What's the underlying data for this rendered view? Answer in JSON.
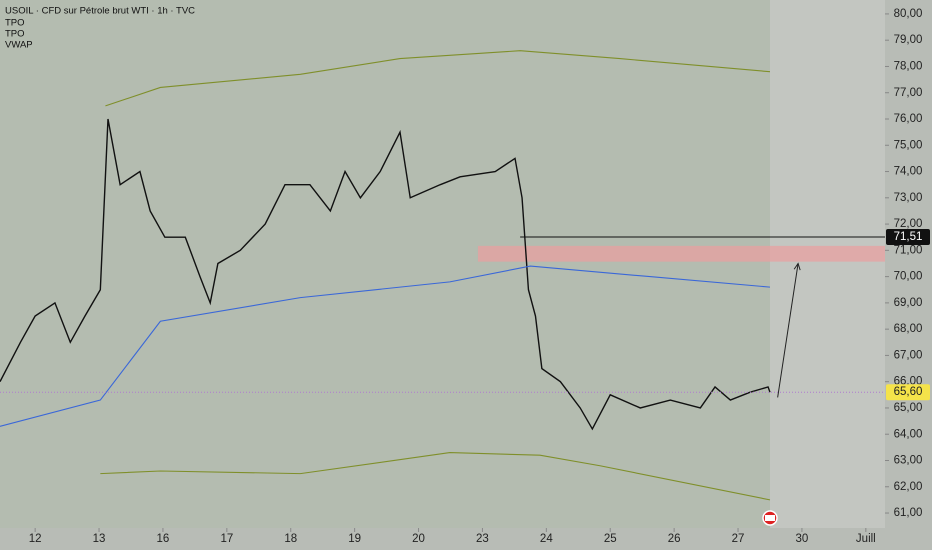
{
  "chart_data": {
    "type": "line",
    "title": "USOIL · CFD sur Pétrole brut WTI · 1h · TVC",
    "indicators": [
      "TPO",
      "TPO"
    ],
    "xlim": [
      -0.55,
      13.3
    ],
    "xticks": [
      {
        "value": 0,
        "label": "12"
      },
      {
        "value": 1,
        "label": "13"
      },
      {
        "value": 2,
        "label": "16"
      },
      {
        "value": 3,
        "label": "17"
      },
      {
        "value": 4,
        "label": "18"
      },
      {
        "value": 5,
        "label": "19"
      },
      {
        "value": 6,
        "label": "20"
      },
      {
        "value": 7,
        "label": "23"
      },
      {
        "value": 8,
        "label": "24"
      },
      {
        "value": 9,
        "label": "25"
      },
      {
        "value": 10,
        "label": "26"
      },
      {
        "value": 11,
        "label": "27"
      },
      {
        "value": 12,
        "label": "30"
      },
      {
        "value": 13,
        "label": "Juill"
      }
    ],
    "ylim": [
      60.43,
      80.53
    ],
    "yticks": [
      {
        "value": 61,
        "label": "61,00"
      },
      {
        "value": 62,
        "label": "62,00"
      },
      {
        "value": 63,
        "label": "63,00"
      },
      {
        "value": 64,
        "label": "64,00"
      },
      {
        "value": 65,
        "label": "65,00"
      },
      {
        "value": 66,
        "label": "66,00"
      },
      {
        "value": 67,
        "label": "67,00"
      },
      {
        "value": 68,
        "label": "68,00"
      },
      {
        "value": 69,
        "label": "69,00"
      },
      {
        "value": 70,
        "label": "70,00"
      },
      {
        "value": 71,
        "label": "71,00"
      },
      {
        "value": 72,
        "label": "72,00"
      },
      {
        "value": 73,
        "label": "73,00"
      },
      {
        "value": 74,
        "label": "74,00"
      },
      {
        "value": 75,
        "label": "75,00"
      },
      {
        "value": 76,
        "label": "76,00"
      },
      {
        "value": 77,
        "label": "77,00"
      },
      {
        "value": 78,
        "label": "78,00"
      },
      {
        "value": 79,
        "label": "79,00"
      },
      {
        "value": 80,
        "label": "80,00"
      }
    ],
    "series": [
      {
        "color": "#111111",
        "x": [
          -0.55,
          -0.23,
          0,
          0.31,
          0.55,
          0.78,
          1.02,
          1.14,
          1.33,
          1.64,
          1.8,
          2.03,
          2.35,
          2.58,
          2.74,
          2.86,
          3.21,
          3.6,
          3.91,
          4.3,
          4.62,
          4.85,
          5.09,
          5.4,
          5.71,
          5.87,
          6.34,
          6.65,
          7.2,
          7.51,
          7.62,
          7.72,
          7.83,
          7.93,
          8.22,
          8.53,
          8.72,
          9.0,
          9.47,
          9.94,
          10.41,
          10.64,
          10.88,
          11.19,
          11.47,
          11.5
        ],
        "values": [
          66.0,
          67.5,
          68.5,
          69.0,
          67.5,
          68.5,
          69.5,
          76.0,
          73.5,
          74.0,
          72.5,
          71.5,
          71.5,
          70.0,
          69.0,
          70.5,
          71.0,
          72.0,
          73.5,
          73.5,
          72.5,
          74.0,
          73.0,
          74.0,
          75.5,
          73.0,
          73.5,
          73.8,
          74.0,
          74.5,
          73.0,
          69.5,
          68.5,
          66.5,
          66.0,
          65.0,
          64.2,
          65.5,
          65.0,
          65.3,
          65.0,
          65.8,
          65.3,
          65.6,
          65.8,
          65.6
        ]
      },
      {
        "name": "VWAP",
        "color": "#3a67d8",
        "x": [
          -0.55,
          1.02,
          1.96,
          4.15,
          6.49,
          7.75,
          9.62,
          11.5
        ],
        "values": [
          64.3,
          65.3,
          68.3,
          69.2,
          69.8,
          70.4,
          70.0,
          69.6
        ]
      },
      {
        "color": "#7f8f2a",
        "x": [
          1.1,
          1.96,
          4.15,
          5.71,
          7.59,
          9.15,
          11.5
        ],
        "values": [
          76.5,
          77.2,
          77.7,
          78.3,
          78.6,
          78.3,
          77.8
        ]
      },
      {
        "color": "#7f8f2a",
        "x": [
          1.02,
          1.96,
          4.15,
          6.49,
          7.9,
          8.84,
          11.5
        ],
        "values": [
          62.5,
          62.6,
          62.5,
          63.3,
          63.2,
          62.8,
          61.5
        ]
      }
    ],
    "level": {
      "value": 71.51,
      "label": "71,51",
      "x0": 7.59
    },
    "last_price": {
      "value": 65.6,
      "label": "65,60"
    },
    "zone": {
      "low": 70.57,
      "high": 71.17,
      "x0": 6.93,
      "color": "#e8a0a0"
    },
    "arrow": {
      "x": [
        11.62,
        11.94
      ],
      "values": [
        65.4,
        70.5
      ]
    },
    "future_from": 11.5
  }
}
